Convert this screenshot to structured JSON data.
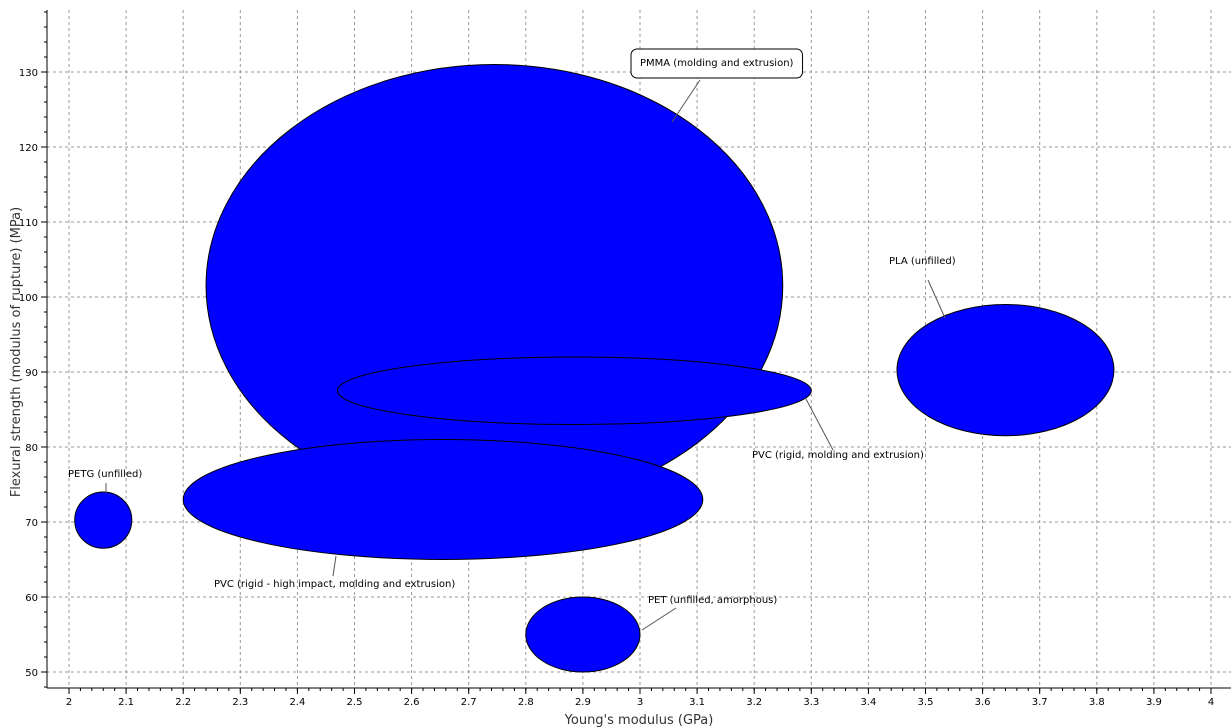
{
  "chart_data": {
    "type": "scatter",
    "chart_style": "bubble-ellipse",
    "xlabel": "Young's modulus (GPa)",
    "ylabel": "Flexural strength (modulus of rupture) (MPa)",
    "xlim": [
      1.97,
      4.02
    ],
    "ylim": [
      48,
      138
    ],
    "x_ticks": [
      2,
      2.1,
      2.2,
      2.3,
      2.4,
      2.5,
      2.6,
      2.7,
      2.8,
      2.9,
      3,
      3.1,
      3.2,
      3.3,
      3.4,
      3.5,
      3.6,
      3.7,
      3.8,
      3.9,
      4
    ],
    "y_ticks": [
      50,
      60,
      70,
      80,
      90,
      100,
      110,
      120,
      130
    ],
    "grid": true,
    "fill_color": "#0000ff",
    "edge_color": "#000000",
    "materials": [
      {
        "name": "PMMA (molding and extrusion)",
        "x_range": [
          2.24,
          3.25
        ],
        "y_range": [
          72,
          131
        ],
        "label_boxed": true
      },
      {
        "name": "PVC (rigid, molding and extrusion)",
        "x_range": [
          2.47,
          3.3
        ],
        "y_range": [
          83,
          92
        ]
      },
      {
        "name": "PLA (unfilled)",
        "x_range": [
          3.45,
          3.83
        ],
        "y_range": [
          81.5,
          99
        ]
      },
      {
        "name": "PETG (unfilled)",
        "x_range": [
          2.01,
          2.11
        ],
        "y_range": [
          66.5,
          74
        ]
      },
      {
        "name": "PVC (rigid - high impact, molding and extrusion)",
        "x_range": [
          2.2,
          3.11
        ],
        "y_range": [
          65,
          81
        ]
      },
      {
        "name": "PET (unfilled, amorphous)",
        "x_range": [
          2.8,
          3.0
        ],
        "y_range": [
          50,
          60
        ]
      }
    ]
  }
}
